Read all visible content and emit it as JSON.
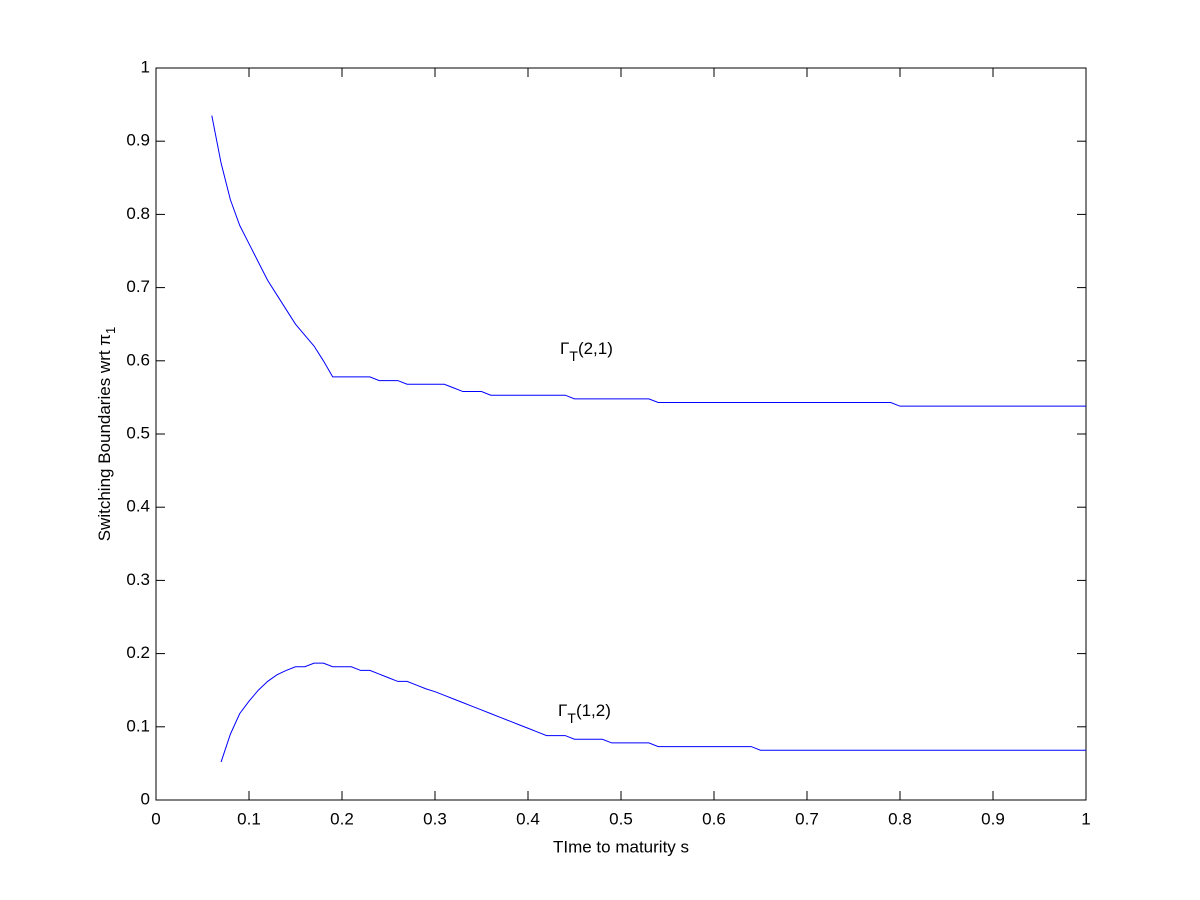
{
  "chart_data": {
    "type": "line",
    "xlabel": "TIme to maturity s",
    "ylabel": "Switching Boundaries wrt π",
    "ylabel_subscript": "1",
    "xlim": [
      0,
      1
    ],
    "ylim": [
      0,
      1
    ],
    "xticks": [
      0,
      0.1,
      0.2,
      0.3,
      0.4,
      0.5,
      0.6,
      0.7,
      0.8,
      0.9,
      1
    ],
    "yticks": [
      0,
      0.1,
      0.2,
      0.3,
      0.4,
      0.5,
      0.6,
      0.7,
      0.8,
      0.9,
      1
    ],
    "series": [
      {
        "name": "Γ",
        "name_subscript": "T",
        "name_suffix": "(2,1)",
        "color": "#0000ff",
        "x": [
          0.06,
          0.07,
          0.08,
          0.09,
          0.1,
          0.11,
          0.12,
          0.13,
          0.14,
          0.15,
          0.16,
          0.17,
          0.18,
          0.19,
          0.23,
          0.24,
          0.26,
          0.27,
          0.31,
          0.32,
          0.33,
          0.35,
          0.36,
          0.44,
          0.45,
          0.53,
          0.54,
          0.79,
          0.8,
          1.0
        ],
        "values": [
          0.935,
          0.87,
          0.82,
          0.785,
          0.76,
          0.735,
          0.71,
          0.69,
          0.67,
          0.65,
          0.635,
          0.62,
          0.6,
          0.578,
          0.578,
          0.573,
          0.573,
          0.568,
          0.568,
          0.563,
          0.558,
          0.558,
          0.553,
          0.553,
          0.548,
          0.548,
          0.543,
          0.543,
          0.538,
          0.538
        ]
      },
      {
        "name": "Γ",
        "name_subscript": "T",
        "name_suffix": "(1,2)",
        "color": "#0000ff",
        "x": [
          0.07,
          0.08,
          0.09,
          0.1,
          0.11,
          0.12,
          0.13,
          0.14,
          0.15,
          0.16,
          0.17,
          0.18,
          0.19,
          0.21,
          0.22,
          0.23,
          0.24,
          0.25,
          0.26,
          0.27,
          0.28,
          0.29,
          0.3,
          0.31,
          0.32,
          0.33,
          0.34,
          0.35,
          0.36,
          0.37,
          0.38,
          0.39,
          0.4,
          0.41,
          0.42,
          0.44,
          0.45,
          0.48,
          0.49,
          0.53,
          0.54,
          0.64,
          0.65,
          1.0
        ],
        "values": [
          0.052,
          0.09,
          0.118,
          0.135,
          0.15,
          0.162,
          0.171,
          0.177,
          0.182,
          0.182,
          0.187,
          0.187,
          0.182,
          0.182,
          0.177,
          0.177,
          0.172,
          0.167,
          0.162,
          0.162,
          0.157,
          0.152,
          0.148,
          0.143,
          0.138,
          0.133,
          0.128,
          0.123,
          0.118,
          0.113,
          0.108,
          0.103,
          0.098,
          0.093,
          0.088,
          0.088,
          0.083,
          0.083,
          0.078,
          0.078,
          0.073,
          0.073,
          0.068,
          0.068
        ]
      }
    ]
  }
}
